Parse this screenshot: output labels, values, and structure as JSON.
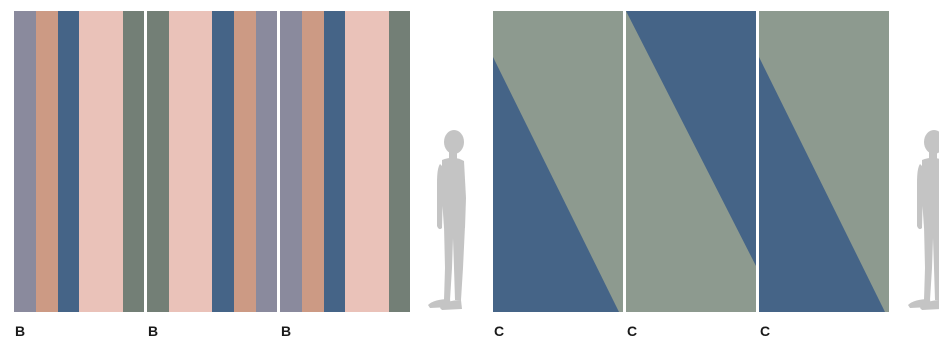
{
  "labels": {
    "panel_1": "B",
    "panel_2": "B",
    "panel_3": "B",
    "panel_4": "C",
    "panel_5": "C",
    "panel_6": "C"
  },
  "colors": {
    "lavender_grey": "#8a8a9d",
    "terracotta": "#cc9a84",
    "slate_blue": "#456487",
    "blush_pink": "#eac2b9",
    "sage_grey": "#737f76",
    "sage_light": "#8d9a8f",
    "silhouette": "#c4c4c4"
  },
  "icons": {
    "scale_figure": "human-silhouette-icon"
  }
}
